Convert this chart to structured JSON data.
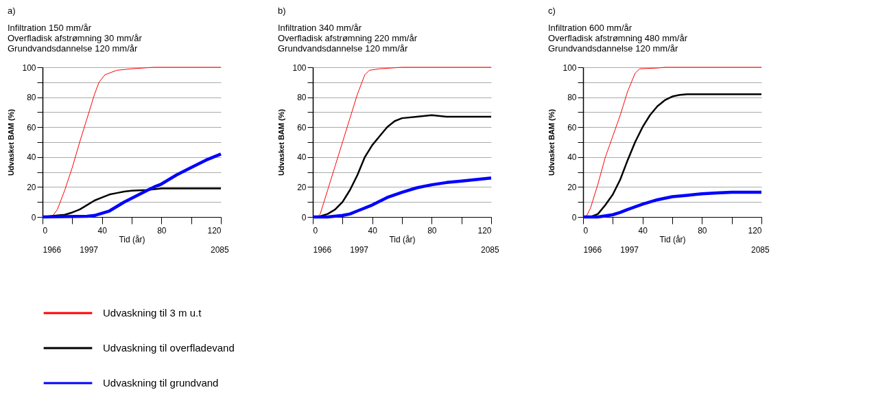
{
  "chart_data": [
    {
      "type": "line",
      "title": "a)",
      "annotations": [
        "Infiltration 150 mm/år",
        "Overfladisk afstrømning 30 mm/år",
        "Grundvandsdannelse 120 mm/år"
      ],
      "xlabel": "Tid (år)",
      "ylabel": "Udvasket BAM (%)",
      "xlim": [
        0,
        120
      ],
      "xticks": [
        0,
        {
          "value": 20,
          "label": null
        },
        40,
        {
          "value": 60,
          "label": null
        },
        80,
        {
          "value": 100,
          "label": null
        },
        120
      ],
      "x2lim": [
        1966,
        2086
      ],
      "x2ticks": [
        1966,
        1997,
        2085
      ],
      "ylim": [
        0,
        100
      ],
      "yticks": [
        0,
        {
          "value": 10,
          "label": null
        },
        20,
        {
          "value": 30,
          "label": null
        },
        40,
        {
          "value": 50,
          "label": null
        },
        60,
        {
          "value": 70,
          "label": null
        },
        80,
        {
          "value": 90,
          "label": null
        },
        100
      ],
      "grid": "y",
      "legend": "bottom",
      "series": [
        {
          "name": "Udvaskning til 3 m u.t",
          "color": "#ff0000",
          "x": [
            0,
            5,
            7,
            10,
            15,
            20,
            25,
            30,
            35,
            38,
            42,
            50,
            60,
            75,
            120
          ],
          "values": [
            0,
            0,
            1,
            5,
            18,
            33,
            50,
            66,
            82,
            90,
            95,
            98,
            99,
            100,
            100
          ]
        },
        {
          "name": "Udvaskning til overfladevand",
          "color": "#000000",
          "x": [
            0,
            10,
            15,
            20,
            25,
            30,
            35,
            40,
            45,
            50,
            55,
            60,
            70,
            80,
            120
          ],
          "values": [
            0,
            1,
            1.5,
            3,
            5,
            8,
            11,
            13,
            15,
            16,
            17,
            17.5,
            18,
            19,
            19
          ]
        },
        {
          "name": "Udvaskning til grundvand",
          "color": "#0000ff",
          "x": [
            0,
            30,
            35,
            40,
            45,
            50,
            55,
            60,
            65,
            70,
            75,
            80,
            90,
            100,
            110,
            120
          ],
          "values": [
            0,
            0.5,
            1,
            2.5,
            4,
            7,
            10,
            12.5,
            15,
            17.5,
            20,
            22,
            28,
            33,
            38,
            42
          ]
        }
      ]
    },
    {
      "type": "line",
      "title": "b)",
      "annotations": [
        "Infiltration 340 mm/år",
        "Overfladisk afstrømning 220 mm/år",
        "Grundvandsdannelse 120 mm/år"
      ],
      "xlabel": "Tid (år)",
      "ylabel": "Udvasket BAM (%)",
      "xlim": [
        0,
        120
      ],
      "xticks": [
        0,
        {
          "value": 20,
          "label": null
        },
        40,
        {
          "value": 60,
          "label": null
        },
        80,
        {
          "value": 100,
          "label": null
        },
        120
      ],
      "x2lim": [
        1966,
        2086
      ],
      "x2ticks": [
        1966,
        1997,
        2085
      ],
      "ylim": [
        0,
        100
      ],
      "yticks": [
        0,
        {
          "value": 10,
          "label": null
        },
        20,
        {
          "value": 30,
          "label": null
        },
        40,
        {
          "value": 50,
          "label": null
        },
        60,
        {
          "value": 70,
          "label": null
        },
        80,
        {
          "value": 90,
          "label": null
        },
        100
      ],
      "grid": "y",
      "series": [
        {
          "color": "#ff0000",
          "x": [
            0,
            3,
            5,
            10,
            15,
            20,
            25,
            30,
            35,
            38,
            45,
            60,
            120
          ],
          "values": [
            0,
            0,
            2,
            18,
            34,
            50,
            66,
            82,
            95,
            98,
            99,
            100,
            100
          ]
        },
        {
          "color": "#000000",
          "x": [
            0,
            5,
            10,
            15,
            20,
            25,
            30,
            35,
            40,
            45,
            50,
            55,
            60,
            70,
            80,
            90,
            120
          ],
          "values": [
            0,
            0.5,
            2,
            5,
            10,
            18,
            28,
            40,
            48,
            54,
            60,
            64,
            66,
            67,
            68,
            67,
            67
          ]
        },
        {
          "color": "#0000ff",
          "x": [
            0,
            10,
            20,
            25,
            30,
            40,
            50,
            60,
            70,
            80,
            90,
            100,
            110,
            120
          ],
          "values": [
            0,
            0,
            1,
            2,
            4,
            8,
            13,
            16.5,
            19.5,
            21.5,
            23,
            24,
            25,
            26
          ]
        }
      ]
    },
    {
      "type": "line",
      "title": "c)",
      "annotations": [
        "Infiltration 600 mm/år",
        "Overfladisk afstrømning 480 mm/år",
        "Grundvandsdannelse 120 mm/år"
      ],
      "xlabel": "Tid (år)",
      "ylabel": "Udvasket BAM (%)",
      "xlim": [
        0,
        120
      ],
      "xticks": [
        0,
        {
          "value": 20,
          "label": null
        },
        40,
        {
          "value": 60,
          "label": null
        },
        80,
        {
          "value": 100,
          "label": null
        },
        120
      ],
      "x2lim": [
        1966,
        2086
      ],
      "x2ticks": [
        1966,
        1997,
        2085
      ],
      "ylim": [
        0,
        100
      ],
      "yticks": [
        0,
        {
          "value": 10,
          "label": null
        },
        20,
        {
          "value": 30,
          "label": null
        },
        40,
        {
          "value": 50,
          "label": null
        },
        60,
        {
          "value": 70,
          "label": null
        },
        80,
        {
          "value": 90,
          "label": null
        },
        100
      ],
      "grid": "y",
      "series": [
        {
          "color": "#ff0000",
          "x": [
            0,
            2,
            5,
            10,
            15,
            20,
            25,
            30,
            35,
            38,
            50,
            55,
            120
          ],
          "values": [
            0,
            0,
            6,
            22,
            40,
            54,
            68,
            84,
            96,
            99,
            99.5,
            100,
            100
          ]
        },
        {
          "color": "#000000",
          "x": [
            0,
            5,
            10,
            15,
            20,
            25,
            30,
            35,
            40,
            45,
            50,
            55,
            60,
            65,
            70,
            120
          ],
          "values": [
            0,
            0,
            2,
            8,
            15,
            25,
            38,
            50,
            60,
            68,
            74,
            78,
            80.5,
            81.5,
            82,
            82
          ]
        },
        {
          "color": "#0000ff",
          "x": [
            0,
            10,
            20,
            25,
            30,
            40,
            50,
            60,
            70,
            80,
            90,
            100,
            120
          ],
          "values": [
            0,
            0,
            1.5,
            3,
            5,
            8.5,
            11.5,
            13.5,
            14.5,
            15.5,
            16,
            16.5,
            16.5
          ]
        }
      ]
    }
  ]
}
